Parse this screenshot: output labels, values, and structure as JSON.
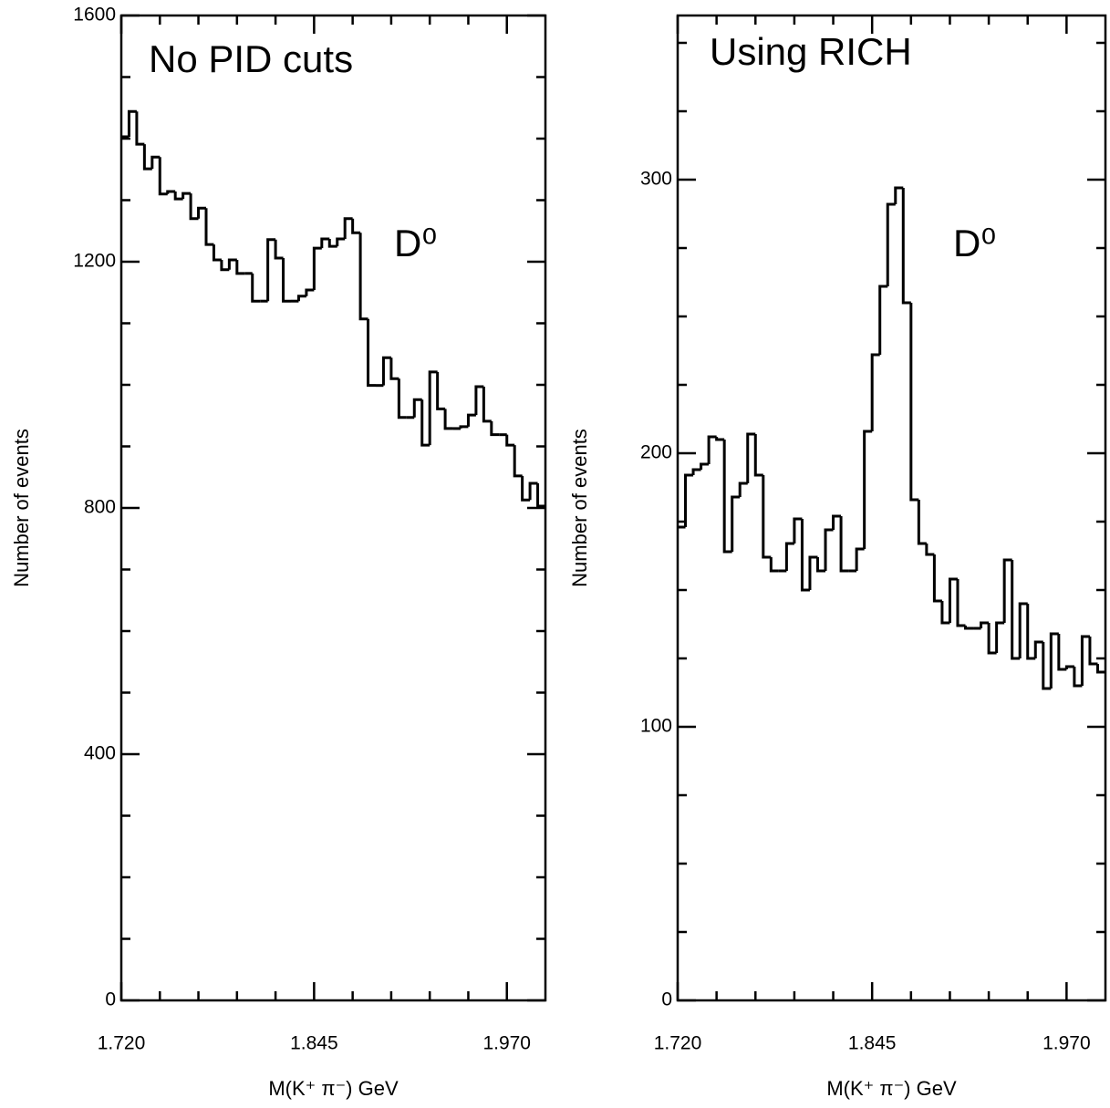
{
  "chart_data": [
    {
      "type": "histogram",
      "title": "No PID cuts",
      "annotation": "D⁰",
      "xlabel": "M(K⁺ π⁻) GeV",
      "ylabel": "Number of events",
      "bins": [
        1.72,
        1.725,
        1.73,
        1.735,
        1.74,
        1.745,
        1.75,
        1.755,
        1.76,
        1.765,
        1.77,
        1.775,
        1.78,
        1.785,
        1.79,
        1.795,
        1.8,
        1.805,
        1.81,
        1.815,
        1.82,
        1.825,
        1.83,
        1.835,
        1.84,
        1.845,
        1.85,
        1.855,
        1.86,
        1.865,
        1.87,
        1.875,
        1.88,
        1.885,
        1.89,
        1.895,
        1.9,
        1.905,
        1.91,
        1.915,
        1.92,
        1.925,
        1.93,
        1.935,
        1.94,
        1.945,
        1.95,
        1.955,
        1.96,
        1.965,
        1.97,
        1.975,
        1.98,
        1.985,
        1.99,
        1.995
      ],
      "values": [
        1403,
        1444,
        1391,
        1351,
        1370,
        1310,
        1314,
        1302,
        1311,
        1270,
        1287,
        1228,
        1203,
        1187,
        1203,
        1181,
        1181,
        1136,
        1136,
        1236,
        1206,
        1136,
        1136,
        1144,
        1154,
        1222,
        1237,
        1225,
        1237,
        1270,
        1247,
        1107,
        999,
        999,
        1044,
        1010,
        947,
        947,
        976,
        902,
        1021,
        961,
        929,
        929,
        932,
        951,
        997,
        941,
        919,
        919,
        902,
        852,
        813,
        840,
        803
      ],
      "color": "#000000",
      "xlim": [
        1.72,
        1.995
      ],
      "xticks": [
        {
          "value": 1.72,
          "label": "1.720"
        },
        {
          "value": 1.845,
          "label": "1.845"
        },
        {
          "value": 1.97,
          "label": "1.970"
        }
      ],
      "xminor_ticks": [
        1.745,
        1.77,
        1.795,
        1.82,
        1.87,
        1.895,
        1.92,
        1.945
      ],
      "ylim": [
        0,
        1600
      ],
      "yticks": [
        0,
        400,
        800,
        1200,
        1600
      ],
      "yminor_ticks": [
        100,
        200,
        300,
        500,
        600,
        700,
        900,
        1000,
        1100,
        1300,
        1400,
        1500
      ]
    },
    {
      "type": "histogram",
      "title": "Using RICH",
      "annotation": "D⁰",
      "xlabel": "M(K⁺ π⁻) GeV",
      "ylabel": "Number of events",
      "bins": [
        1.72,
        1.725,
        1.73,
        1.735,
        1.74,
        1.745,
        1.75,
        1.755,
        1.76,
        1.765,
        1.77,
        1.775,
        1.78,
        1.785,
        1.79,
        1.795,
        1.8,
        1.805,
        1.81,
        1.815,
        1.82,
        1.825,
        1.83,
        1.835,
        1.84,
        1.845,
        1.85,
        1.855,
        1.86,
        1.865,
        1.87,
        1.875,
        1.88,
        1.885,
        1.89,
        1.895,
        1.9,
        1.905,
        1.91,
        1.915,
        1.92,
        1.925,
        1.93,
        1.935,
        1.94,
        1.945,
        1.95,
        1.955,
        1.96,
        1.965,
        1.97,
        1.975,
        1.98,
        1.985,
        1.99,
        1.995
      ],
      "values": [
        173,
        192,
        194,
        196,
        206,
        205,
        164,
        184,
        189,
        207,
        192,
        162,
        157,
        157,
        167,
        176,
        150,
        162,
        157,
        172,
        177,
        157,
        157,
        165,
        208,
        236,
        261,
        291,
        297,
        255,
        183,
        167,
        163,
        146,
        138,
        154,
        137,
        136,
        136,
        138,
        127,
        138,
        161,
        125,
        145,
        125,
        131,
        114,
        134,
        121,
        122,
        115,
        133,
        123,
        120
      ],
      "color": "#000000",
      "xlim": [
        1.72,
        1.995
      ],
      "xticks": [
        {
          "value": 1.72,
          "label": "1.720"
        },
        {
          "value": 1.845,
          "label": "1.845"
        },
        {
          "value": 1.97,
          "label": "1.970"
        }
      ],
      "xminor_ticks": [
        1.745,
        1.77,
        1.795,
        1.82,
        1.87,
        1.895,
        1.92,
        1.945
      ],
      "ylim": [
        0,
        360
      ],
      "yticks": [
        0,
        100,
        200,
        300
      ],
      "yminor_ticks": [
        25,
        50,
        75,
        125,
        150,
        175,
        225,
        250,
        275,
        325,
        350
      ]
    }
  ]
}
